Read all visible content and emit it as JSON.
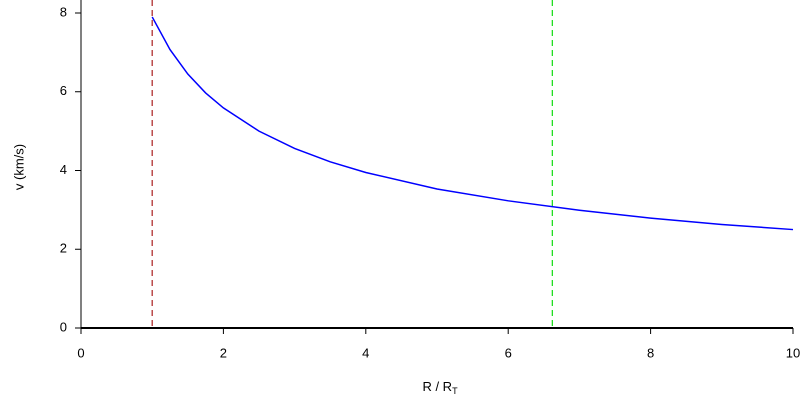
{
  "chart_data": {
    "type": "line",
    "y_label": "v (km/s)",
    "x_label": {
      "main": "R / R",
      "sub": "T"
    },
    "x": [
      1,
      1.25,
      1.5,
      1.75,
      2,
      2.5,
      3,
      3.5,
      4,
      5,
      6,
      7,
      8,
      9,
      10
    ],
    "series": [
      {
        "color": "#0000ff",
        "values": [
          7.9,
          7.07,
          6.45,
          5.97,
          5.59,
          5.0,
          4.56,
          4.22,
          3.95,
          3.53,
          3.23,
          2.99,
          2.79,
          2.63,
          2.5
        ]
      }
    ],
    "vlines": [
      {
        "x": 1,
        "color": "#b03030"
      },
      {
        "x": 6.62,
        "color": "#22dd22"
      }
    ],
    "xlim": [
      0,
      10
    ],
    "ylim": [
      0,
      8.33
    ],
    "xticks": [
      0,
      2,
      4,
      6,
      8,
      10
    ],
    "yticks": [
      0,
      2,
      4,
      6,
      8
    ]
  }
}
